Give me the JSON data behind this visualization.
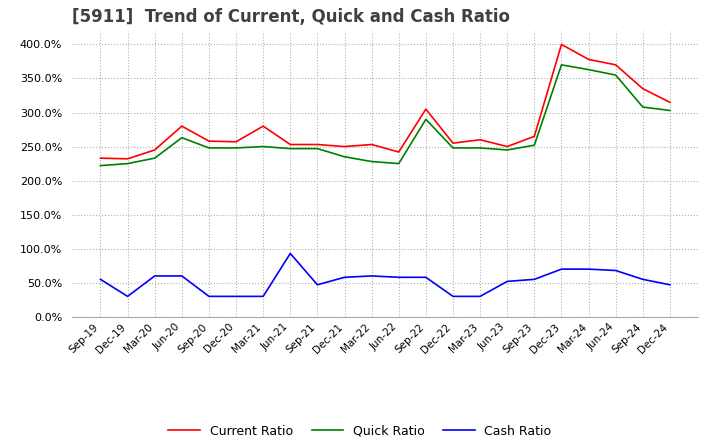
{
  "title": "[5911]  Trend of Current, Quick and Cash Ratio",
  "x_labels": [
    "Sep-19",
    "Dec-19",
    "Mar-20",
    "Jun-20",
    "Sep-20",
    "Dec-20",
    "Mar-21",
    "Jun-21",
    "Sep-21",
    "Dec-21",
    "Mar-22",
    "Jun-22",
    "Sep-22",
    "Dec-22",
    "Mar-23",
    "Jun-23",
    "Sep-23",
    "Dec-23",
    "Mar-24",
    "Jun-24",
    "Sep-24",
    "Dec-24"
  ],
  "current_ratio": [
    233,
    232,
    245,
    280,
    258,
    257,
    280,
    253,
    253,
    250,
    253,
    242,
    305,
    255,
    260,
    250,
    265,
    400,
    378,
    370,
    335,
    315
  ],
  "quick_ratio": [
    222,
    225,
    233,
    263,
    248,
    248,
    250,
    247,
    247,
    235,
    228,
    225,
    290,
    248,
    248,
    245,
    252,
    370,
    363,
    355,
    308,
    303
  ],
  "cash_ratio": [
    55,
    30,
    60,
    60,
    30,
    30,
    30,
    93,
    47,
    58,
    60,
    58,
    58,
    30,
    30,
    52,
    55,
    70,
    70,
    68,
    55,
    47
  ],
  "current_color": "#ff0000",
  "quick_color": "#008000",
  "cash_color": "#0000ff",
  "ylim": [
    0,
    420
  ],
  "yticks": [
    0,
    50,
    100,
    150,
    200,
    250,
    300,
    350,
    400
  ],
  "background_color": "#ffffff",
  "grid_color": "#b0b0b0",
  "title_fontsize": 12,
  "title_color": "#404040"
}
